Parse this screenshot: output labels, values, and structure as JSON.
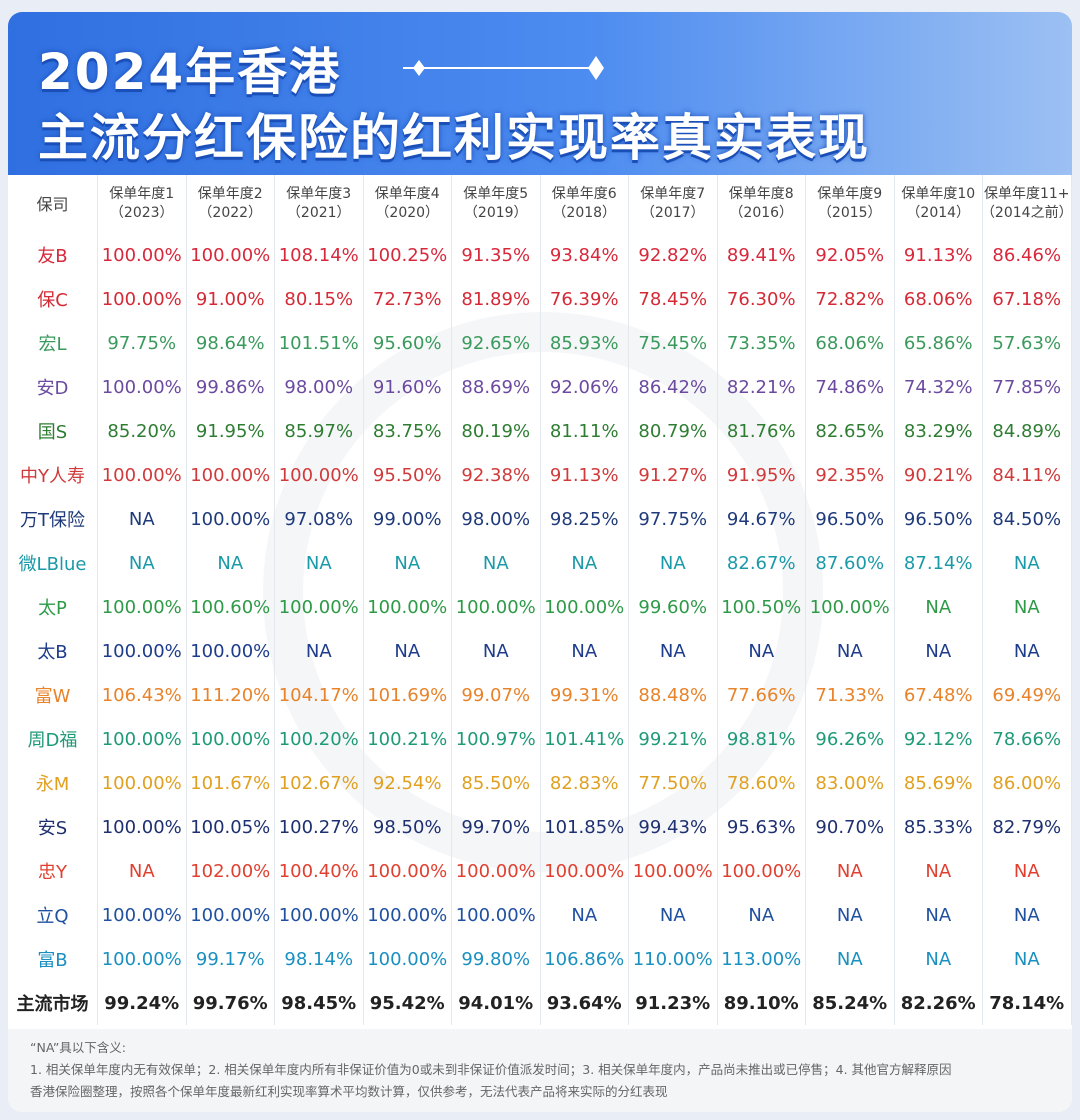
{
  "header": {
    "title_lines": [
      "2024年香港",
      "主流分红保险的红利实现率真实表现"
    ]
  },
  "table": {
    "corner": "保司",
    "columns": [
      [
        "保单年度1",
        "（2023）"
      ],
      [
        "保单年度2",
        "（2022）"
      ],
      [
        "保单年度3",
        "（2021）"
      ],
      [
        "保单年度4",
        "（2020）"
      ],
      [
        "保单年度5",
        "（2019）"
      ],
      [
        "保单年度6",
        "（2018）"
      ],
      [
        "保单年度7",
        "（2017）"
      ],
      [
        "保单年度8",
        "（2016）"
      ],
      [
        "保单年度9",
        "（2015）"
      ],
      [
        "保单年度10",
        "（2014）"
      ],
      [
        "保单年度11+",
        "（2014之前）"
      ]
    ],
    "rows": [
      {
        "name": "友B",
        "color": "#d8283b",
        "cells": [
          "100.00%",
          "100.00%",
          "108.14%",
          "100.25%",
          "91.35%",
          "93.84%",
          "92.82%",
          "89.41%",
          "92.05%",
          "91.13%",
          "86.46%"
        ]
      },
      {
        "name": "保C",
        "color": "#d42a36",
        "cells": [
          "100.00%",
          "91.00%",
          "80.15%",
          "72.73%",
          "81.89%",
          "76.39%",
          "78.45%",
          "76.30%",
          "72.82%",
          "68.06%",
          "67.18%"
        ]
      },
      {
        "name": "宏L",
        "color": "#3a9a5c",
        "cells": [
          "97.75%",
          "98.64%",
          "101.51%",
          "95.60%",
          "92.65%",
          "85.93%",
          "75.45%",
          "73.35%",
          "68.06%",
          "65.86%",
          "57.63%"
        ]
      },
      {
        "name": "安D",
        "color": "#6b4aa0",
        "cells": [
          "100.00%",
          "99.86%",
          "98.00%",
          "91.60%",
          "88.69%",
          "92.06%",
          "86.42%",
          "82.21%",
          "74.86%",
          "74.32%",
          "77.85%"
        ]
      },
      {
        "name": "国S",
        "color": "#2e7d32",
        "cells": [
          "85.20%",
          "91.95%",
          "85.97%",
          "83.75%",
          "80.19%",
          "81.11%",
          "80.79%",
          "81.76%",
          "82.65%",
          "83.29%",
          "84.89%"
        ]
      },
      {
        "name": "中Y人寿",
        "color": "#d03a3a",
        "cells": [
          "100.00%",
          "100.00%",
          "100.00%",
          "95.50%",
          "92.38%",
          "91.13%",
          "91.27%",
          "91.95%",
          "92.35%",
          "90.21%",
          "84.11%"
        ]
      },
      {
        "name": "万T保险",
        "color": "#1f3a7a",
        "cells": [
          "NA",
          "100.00%",
          "97.08%",
          "99.00%",
          "98.00%",
          "98.25%",
          "97.75%",
          "94.67%",
          "96.50%",
          "96.50%",
          "84.50%"
        ]
      },
      {
        "name": "微LBlue",
        "color": "#1a9aa8",
        "cells": [
          "NA",
          "NA",
          "NA",
          "NA",
          "NA",
          "NA",
          "NA",
          "82.67%",
          "87.60%",
          "87.14%",
          "NA"
        ]
      },
      {
        "name": "太P",
        "color": "#2e9a48",
        "cells": [
          "100.00%",
          "100.60%",
          "100.00%",
          "100.00%",
          "100.00%",
          "100.00%",
          "99.60%",
          "100.50%",
          "100.00%",
          "NA",
          "NA"
        ]
      },
      {
        "name": "太B",
        "color": "#1e3c8c",
        "cells": [
          "100.00%",
          "100.00%",
          "NA",
          "NA",
          "NA",
          "NA",
          "NA",
          "NA",
          "NA",
          "NA",
          "NA"
        ]
      },
      {
        "name": "富W",
        "color": "#e8832a",
        "cells": [
          "106.43%",
          "111.20%",
          "104.17%",
          "101.69%",
          "99.07%",
          "99.31%",
          "88.48%",
          "77.66%",
          "71.33%",
          "67.48%",
          "69.49%"
        ]
      },
      {
        "name": "周D福",
        "color": "#1f9a78",
        "cells": [
          "100.00%",
          "100.00%",
          "100.20%",
          "100.21%",
          "100.97%",
          "101.41%",
          "99.21%",
          "98.81%",
          "96.26%",
          "92.12%",
          "78.66%"
        ]
      },
      {
        "name": "永M",
        "color": "#e0a020",
        "cells": [
          "100.00%",
          "101.67%",
          "102.67%",
          "92.54%",
          "85.50%",
          "82.83%",
          "77.50%",
          "78.60%",
          "83.00%",
          "85.69%",
          "86.00%"
        ]
      },
      {
        "name": "安S",
        "color": "#1e3070",
        "cells": [
          "100.00%",
          "100.05%",
          "100.27%",
          "98.50%",
          "99.70%",
          "101.85%",
          "99.43%",
          "95.63%",
          "90.70%",
          "85.33%",
          "82.79%"
        ]
      },
      {
        "name": "忠Y",
        "color": "#e04030",
        "cells": [
          "NA",
          "102.00%",
          "100.40%",
          "100.00%",
          "100.00%",
          "100.00%",
          "100.00%",
          "100.00%",
          "NA",
          "NA",
          "NA"
        ]
      },
      {
        "name": "立Q",
        "color": "#2050a0",
        "cells": [
          "100.00%",
          "100.00%",
          "100.00%",
          "100.00%",
          "100.00%",
          "NA",
          "NA",
          "NA",
          "NA",
          "NA",
          "NA"
        ]
      },
      {
        "name": "富B",
        "color": "#1a90c0",
        "cells": [
          "100.00%",
          "99.17%",
          "98.14%",
          "100.00%",
          "99.80%",
          "106.86%",
          "110.00%",
          "113.00%",
          "NA",
          "NA",
          "NA"
        ]
      },
      {
        "name": "主流市场",
        "color": "#222222",
        "cells": [
          "99.24%",
          "99.76%",
          "98.45%",
          "95.42%",
          "94.01%",
          "93.64%",
          "91.23%",
          "89.10%",
          "85.24%",
          "82.26%",
          "78.14%"
        ]
      }
    ]
  },
  "footer": {
    "heading": "“NA”具以下含义:",
    "lines": [
      "1. 相关保单年度内无有效保单；2. 相关保单年度内所有非保证价值为0或未到非保证价值派发时间；3. 相关保单年度内，产品尚未推出或已停售；4. 其他官方解释原因",
      "香港保险圈整理，按照各个保单年度最新红利实现率算术平均数计算，仅供参考，无法代表产品将来实际的分红表现"
    ]
  }
}
